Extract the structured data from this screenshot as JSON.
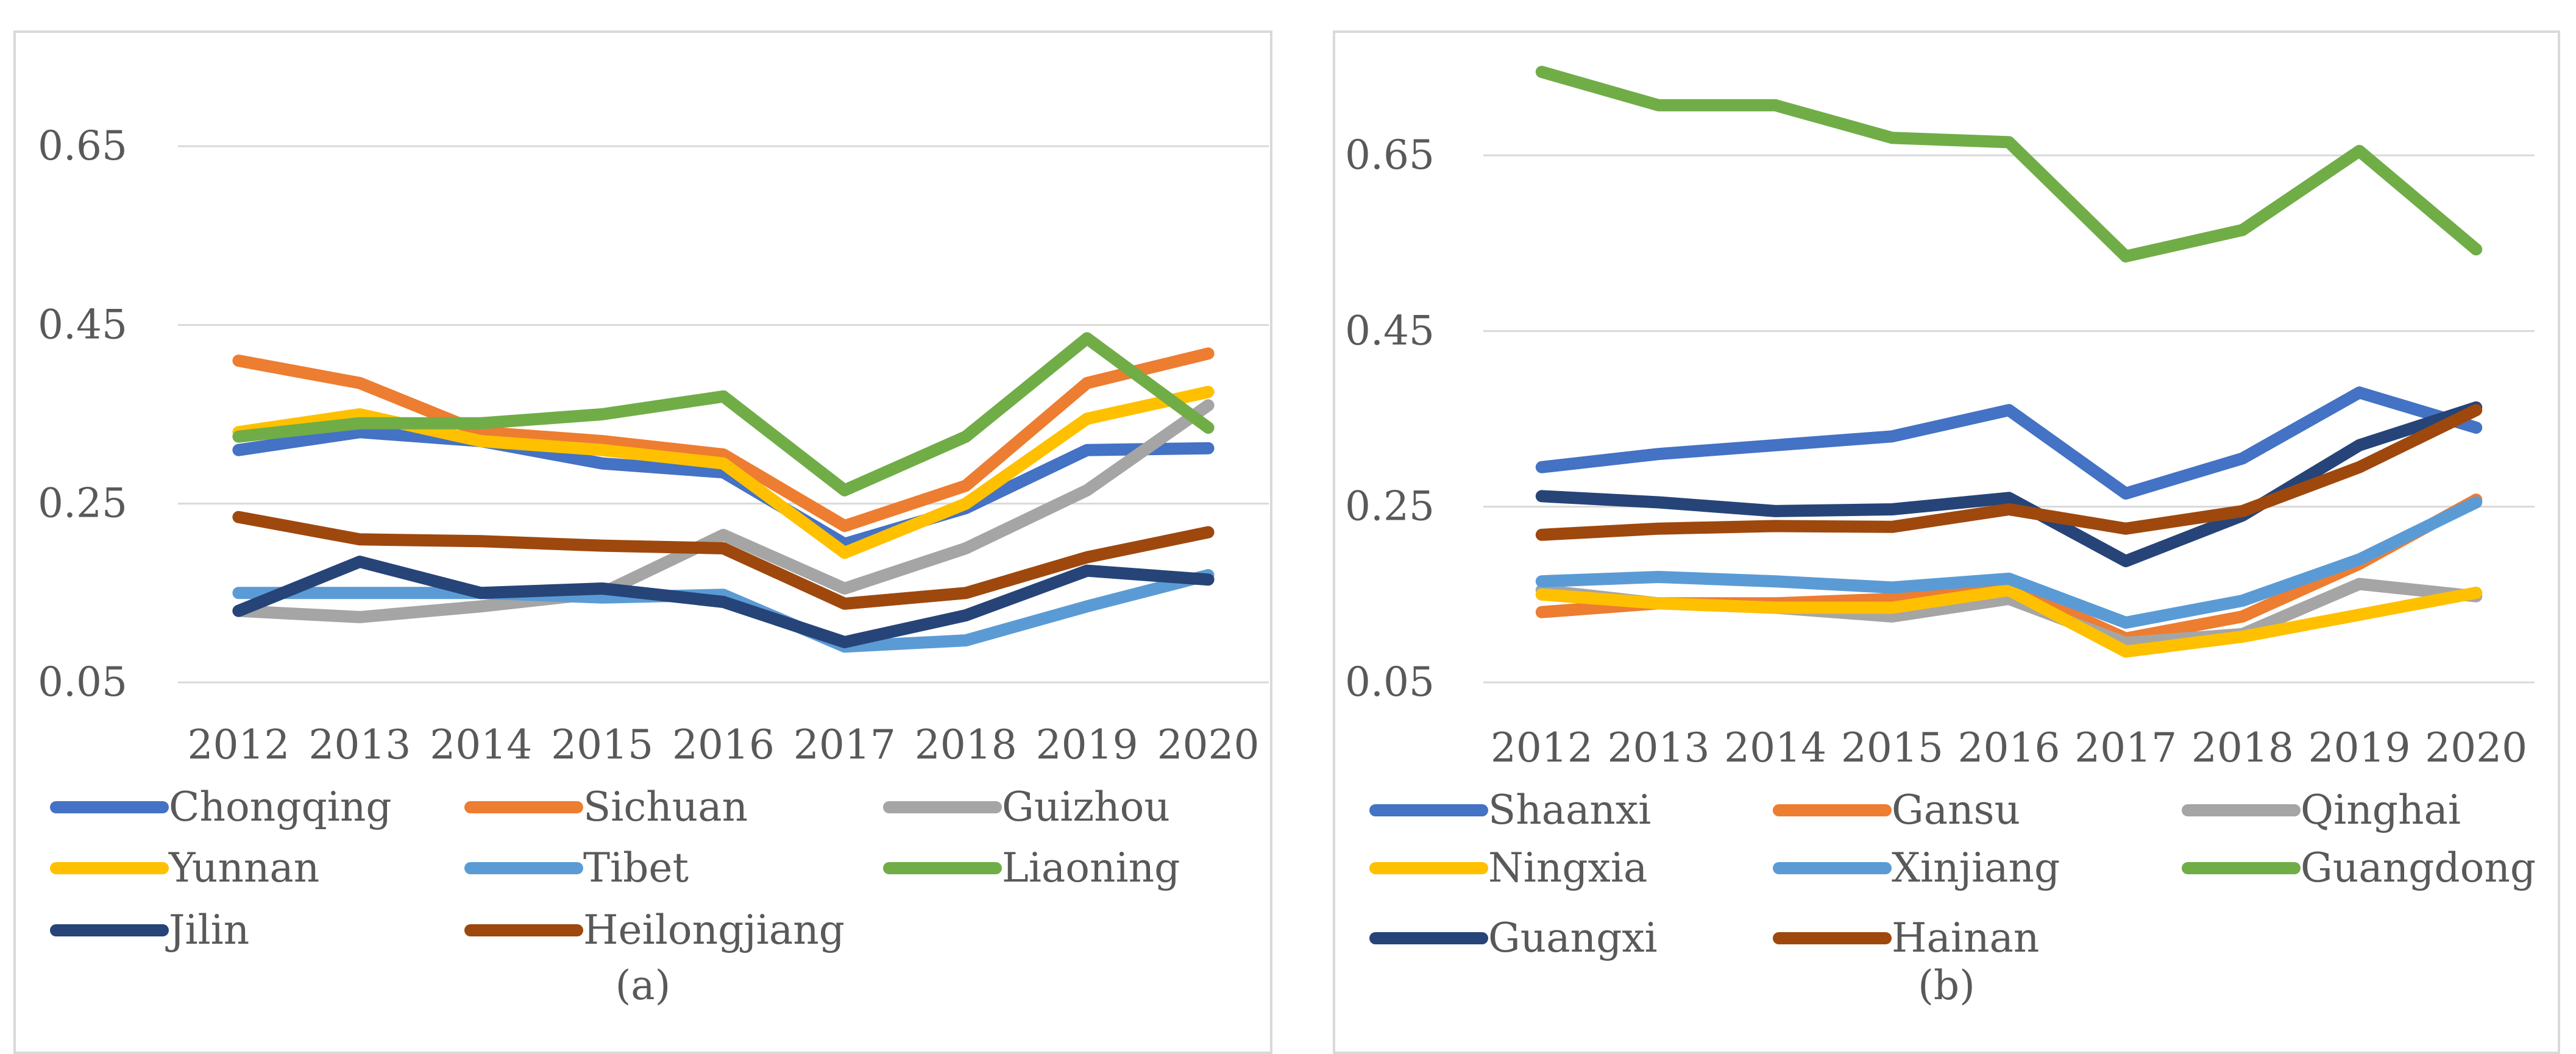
{
  "chart_data": [
    {
      "type": "line",
      "caption": "(a)",
      "categories": [
        "2012",
        "2013",
        "2014",
        "2015",
        "2016",
        "2017",
        "2018",
        "2019",
        "2020"
      ],
      "ylim": [
        0.05,
        0.75
      ],
      "yticks": [
        0.05,
        0.25,
        0.45,
        0.65
      ],
      "ytick_labels": [
        "0.05",
        "0.25",
        "0.45",
        "0.65"
      ],
      "grid": true,
      "legend_position": "bottom",
      "series": [
        {
          "name": "Chongqing",
          "color": "#4472C4",
          "values": [
            0.31,
            0.33,
            0.32,
            0.295,
            0.285,
            0.205,
            0.245,
            0.31,
            0.312
          ]
        },
        {
          "name": "Sichuan",
          "color": "#ED7D31",
          "values": [
            0.41,
            0.385,
            0.33,
            0.32,
            0.305,
            0.225,
            0.27,
            0.385,
            0.418
          ]
        },
        {
          "name": "Guizhou",
          "color": "#A5A5A5",
          "values": [
            0.13,
            0.123,
            0.135,
            0.15,
            0.215,
            0.155,
            0.2,
            0.265,
            0.36
          ]
        },
        {
          "name": "Yunnan",
          "color": "#FFC000",
          "values": [
            0.33,
            0.35,
            0.32,
            0.31,
            0.295,
            0.195,
            0.25,
            0.345,
            0.375
          ]
        },
        {
          "name": "Tibet",
          "color": "#5B9BD5",
          "values": [
            0.15,
            0.15,
            0.15,
            0.145,
            0.148,
            0.09,
            0.097,
            0.135,
            0.17
          ]
        },
        {
          "name": "Liaoning",
          "color": "#70AD47",
          "values": [
            0.325,
            0.34,
            0.34,
            0.35,
            0.37,
            0.265,
            0.325,
            0.435,
            0.335
          ]
        },
        {
          "name": "Jilin",
          "color": "#264478",
          "values": [
            0.13,
            0.185,
            0.15,
            0.155,
            0.14,
            0.095,
            0.125,
            0.175,
            0.165
          ]
        },
        {
          "name": "Heilongjiang",
          "color": "#9E480E",
          "values": [
            0.235,
            0.21,
            0.208,
            0.203,
            0.2,
            0.138,
            0.15,
            0.19,
            0.218
          ]
        }
      ]
    },
    {
      "type": "line",
      "caption": "(b)",
      "categories": [
        "2012",
        "2013",
        "2014",
        "2015",
        "2016",
        "2017",
        "2018",
        "2019",
        "2020"
      ],
      "ylim": [
        0.05,
        0.75
      ],
      "yticks": [
        0.05,
        0.25,
        0.45,
        0.65
      ],
      "ytick_labels": [
        "0.05",
        "0.25",
        "0.45",
        "0.65"
      ],
      "grid": true,
      "legend_position": "bottom",
      "series": [
        {
          "name": "Shaanxi",
          "color": "#4472C4",
          "values": [
            0.295,
            0.31,
            0.32,
            0.33,
            0.36,
            0.265,
            0.305,
            0.38,
            0.34
          ]
        },
        {
          "name": "Gansu",
          "color": "#ED7D31",
          "values": [
            0.13,
            0.14,
            0.14,
            0.145,
            0.16,
            0.1,
            0.125,
            0.185,
            0.258
          ]
        },
        {
          "name": "Qinghai",
          "color": "#A5A5A5",
          "values": [
            0.155,
            0.14,
            0.135,
            0.125,
            0.145,
            0.095,
            0.105,
            0.162,
            0.148
          ]
        },
        {
          "name": "Ningxia",
          "color": "#FFC000",
          "values": [
            0.15,
            0.14,
            0.135,
            0.135,
            0.155,
            0.085,
            0.102,
            0.127,
            0.152
          ]
        },
        {
          "name": "Xinjiang",
          "color": "#5B9BD5",
          "values": [
            0.165,
            0.17,
            0.165,
            0.158,
            0.168,
            0.118,
            0.143,
            0.19,
            0.255
          ]
        },
        {
          "name": "Guangdong",
          "color": "#70AD47",
          "values": [
            0.745,
            0.707,
            0.707,
            0.67,
            0.665,
            0.535,
            0.565,
            0.655,
            0.543
          ]
        },
        {
          "name": "Guangxi",
          "color": "#264478",
          "values": [
            0.262,
            0.255,
            0.245,
            0.247,
            0.26,
            0.188,
            0.24,
            0.32,
            0.363
          ]
        },
        {
          "name": "Hainan",
          "color": "#9E480E",
          "values": [
            0.218,
            0.225,
            0.228,
            0.227,
            0.247,
            0.225,
            0.245,
            0.295,
            0.36
          ]
        }
      ]
    }
  ]
}
